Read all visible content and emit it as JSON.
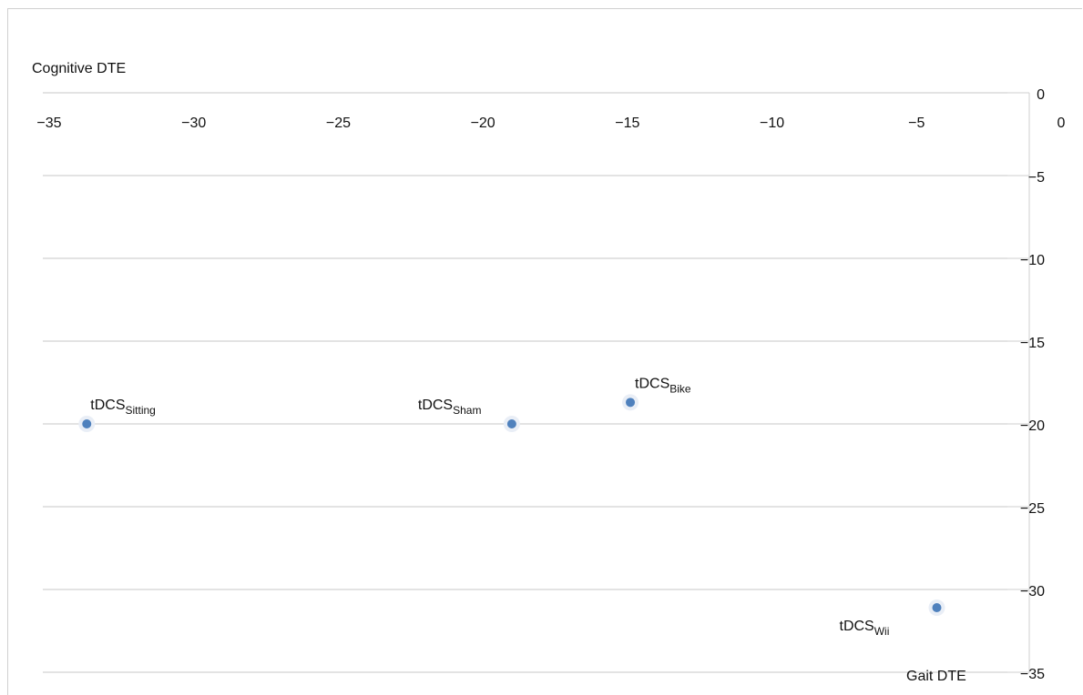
{
  "chart_data": {
    "type": "scatter",
    "title": "",
    "xlabel": "Gait DTE",
    "ylabel": "Cognitive DTE",
    "xlim": [
      -35,
      0
    ],
    "ylim": [
      -35,
      0
    ],
    "x_ticks": [
      "−35",
      "−30",
      "−25",
      "−20",
      "−15",
      "−10",
      "−5",
      "0"
    ],
    "y_ticks": [
      "0",
      "−5",
      "−10",
      "−15",
      "−20",
      "−25",
      "−30",
      "−35"
    ],
    "grid": "horizontal",
    "points": [
      {
        "label": "tDCS",
        "sub": "Sitting",
        "x": -33.7,
        "y": -20.0
      },
      {
        "label": "tDCS",
        "sub": "Sham",
        "x": -19.0,
        "y": -20.0
      },
      {
        "label": "tDCS",
        "sub": "Bike",
        "x": -14.9,
        "y": -18.7
      },
      {
        "label": "tDCS",
        "sub": "Wii",
        "x": -4.3,
        "y": -31.1
      }
    ],
    "marker_color": "#4f81bd",
    "grid_color": "#e3e3e3"
  }
}
